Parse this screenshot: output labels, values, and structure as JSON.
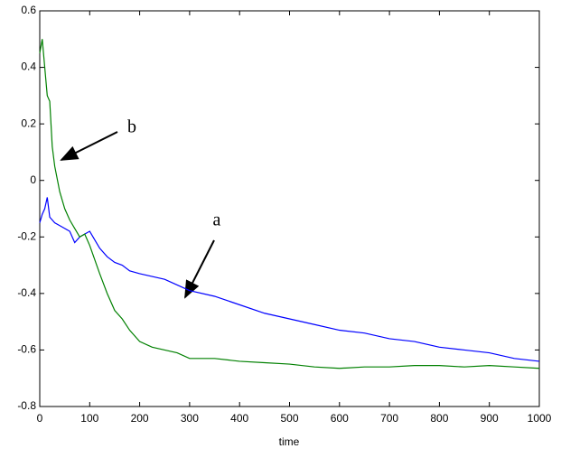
{
  "chart_data": {
    "type": "line",
    "xlabel": "time",
    "x": [
      0,
      5,
      10,
      15,
      20,
      25,
      30,
      40,
      50,
      60,
      70,
      80,
      90,
      100,
      110,
      120,
      135,
      150,
      165,
      180,
      200,
      225,
      250,
      275,
      300,
      350,
      400,
      450,
      500,
      550,
      600,
      650,
      700,
      750,
      800,
      850,
      900,
      950,
      1000
    ],
    "series": [
      {
        "name": "a",
        "color": "#0000ff",
        "values": [
          -0.15,
          -0.12,
          -0.1,
          -0.06,
          -0.13,
          -0.14,
          -0.15,
          -0.16,
          -0.17,
          -0.18,
          -0.22,
          -0.2,
          -0.19,
          -0.18,
          -0.21,
          -0.24,
          -0.27,
          -0.29,
          -0.3,
          -0.32,
          -0.33,
          -0.34,
          -0.35,
          -0.37,
          -0.39,
          -0.41,
          -0.44,
          -0.47,
          -0.49,
          -0.51,
          -0.53,
          -0.54,
          -0.56,
          -0.57,
          -0.59,
          -0.6,
          -0.61,
          -0.63,
          -0.64
        ]
      },
      {
        "name": "b",
        "color": "#008000",
        "values": [
          0.45,
          0.5,
          0.4,
          0.3,
          0.28,
          0.12,
          0.05,
          -0.04,
          -0.1,
          -0.14,
          -0.17,
          -0.2,
          -0.19,
          -0.23,
          -0.28,
          -0.33,
          -0.4,
          -0.46,
          -0.49,
          -0.53,
          -0.57,
          -0.59,
          -0.6,
          -0.61,
          -0.63,
          -0.63,
          -0.64,
          -0.645,
          -0.65,
          -0.66,
          -0.665,
          -0.66,
          -0.66,
          -0.655,
          -0.655,
          -0.66,
          -0.655,
          -0.66,
          -0.665
        ]
      }
    ],
    "xlim": [
      0,
      1000
    ],
    "ylim": [
      -0.8,
      0.6
    ],
    "xticks": [
      0,
      100,
      200,
      300,
      400,
      500,
      600,
      700,
      800,
      900,
      1000
    ],
    "yticks": [
      -0.8,
      -0.6,
      -0.4,
      -0.2,
      0,
      0.2,
      0.4,
      0.6
    ]
  }
}
